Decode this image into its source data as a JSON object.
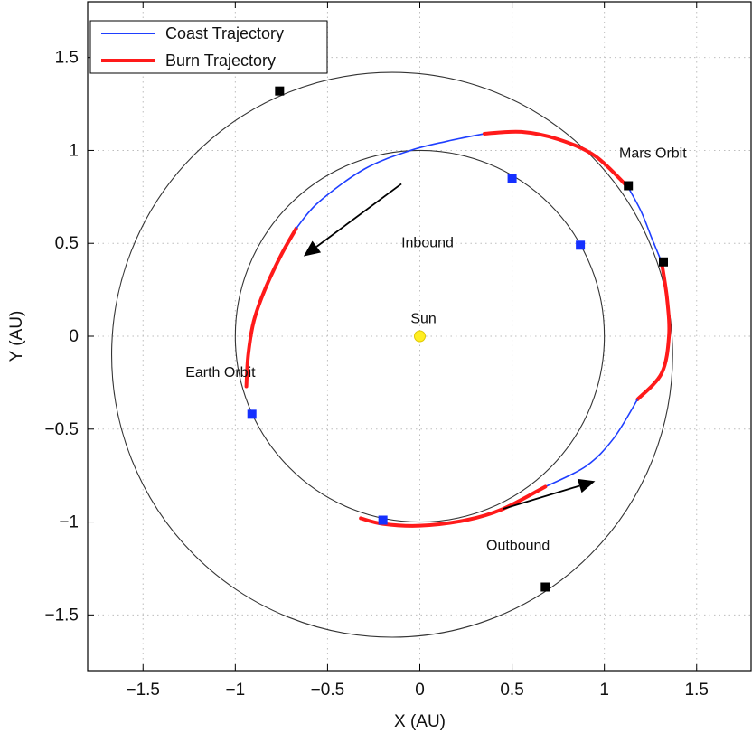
{
  "chart_data": {
    "type": "line",
    "title": "",
    "xlabel": "X (AU)",
    "ylabel": "Y (AU)",
    "xlim": [
      -1.8,
      1.8
    ],
    "ylim": [
      -1.8,
      1.8
    ],
    "grid": true,
    "legend_position": "top-left",
    "xticks": [
      -1.5,
      -1,
      -0.5,
      0,
      0.5,
      1,
      1.5
    ],
    "yticks": [
      -1.5,
      -1,
      -0.5,
      0,
      0.5,
      1,
      1.5
    ],
    "xtick_labels": [
      "−1.5",
      "−1",
      "−0.5",
      "0",
      "0.5",
      "1",
      "1.5"
    ],
    "ytick_labels": [
      "−1.5",
      "−1",
      "−0.5",
      "0",
      "0.5",
      "1",
      "1.5"
    ],
    "series": [
      {
        "name": "Coast Trajectory",
        "color": "#1f3fff"
      },
      {
        "name": "Burn Trajectory",
        "color": "#ff1a1a"
      }
    ],
    "legend_entries": [
      "Coast Trajectory",
      "Burn Trajectory"
    ],
    "orbits": [
      {
        "label": "Earth Orbit",
        "center": [
          0,
          0
        ],
        "radius": 1.0
      },
      {
        "label": "Mars Orbit",
        "center": [
          -0.15,
          -0.1
        ],
        "radius": 1.52
      }
    ],
    "trajectory_segments": [
      {
        "type": "burn",
        "points": [
          [
            -0.94,
            -0.27
          ],
          [
            -0.93,
            -0.1
          ],
          [
            -0.9,
            0.08
          ],
          [
            -0.84,
            0.25
          ],
          [
            -0.75,
            0.44
          ],
          [
            -0.67,
            0.58
          ]
        ]
      },
      {
        "type": "coast",
        "points": [
          [
            -0.67,
            0.58
          ],
          [
            -0.55,
            0.72
          ],
          [
            -0.3,
            0.9
          ],
          [
            -0.05,
            1.0
          ],
          [
            0.15,
            1.05
          ],
          [
            0.35,
            1.09
          ]
        ]
      },
      {
        "type": "burn",
        "points": [
          [
            0.35,
            1.09
          ],
          [
            0.55,
            1.1
          ],
          [
            0.75,
            1.06
          ],
          [
            0.95,
            0.97
          ],
          [
            1.13,
            0.8
          ]
        ]
      },
      {
        "type": "coast",
        "points": [
          [
            1.13,
            0.8
          ],
          [
            1.2,
            0.67
          ],
          [
            1.26,
            0.52
          ],
          [
            1.31,
            0.4
          ]
        ]
      },
      {
        "type": "burn",
        "points": [
          [
            1.31,
            0.4
          ],
          [
            1.34,
            0.2
          ],
          [
            1.35,
            0.0
          ],
          [
            1.31,
            -0.2
          ],
          [
            1.18,
            -0.34
          ]
        ]
      },
      {
        "type": "coast",
        "points": [
          [
            1.18,
            -0.34
          ],
          [
            1.05,
            -0.55
          ],
          [
            0.9,
            -0.7
          ],
          [
            0.68,
            -0.81
          ]
        ]
      },
      {
        "type": "burn",
        "points": [
          [
            0.68,
            -0.81
          ],
          [
            0.45,
            -0.93
          ],
          [
            0.25,
            -0.99
          ],
          [
            0.0,
            -1.02
          ],
          [
            -0.2,
            -1.01
          ],
          [
            -0.32,
            -0.98
          ]
        ]
      }
    ],
    "markers": {
      "black_squares": [
        [
          -0.76,
          1.32
        ],
        [
          1.13,
          0.81
        ],
        [
          1.32,
          0.4
        ],
        [
          0.68,
          -1.35
        ]
      ],
      "blue_squares": [
        [
          0.5,
          0.85
        ],
        [
          0.87,
          0.49
        ],
        [
          -0.91,
          -0.42
        ],
        [
          -0.2,
          -0.99
        ]
      ],
      "sun": [
        0.0,
        0.0
      ]
    },
    "arrows": [
      {
        "label": "Inbound",
        "from": [
          -0.1,
          0.82
        ],
        "to": [
          -0.63,
          0.43
        ]
      },
      {
        "label": "Outbound",
        "from": [
          0.45,
          -0.93
        ],
        "to": [
          0.95,
          -0.78
        ]
      }
    ],
    "annotations": [
      {
        "text": "Sun",
        "x": 0.02,
        "y": 0.07
      },
      {
        "text": "Inbound",
        "x": -0.1,
        "y": 0.48
      },
      {
        "text": "Outbound",
        "x": 0.36,
        "y": -1.15
      },
      {
        "text": "Earth Orbit",
        "x": -1.27,
        "y": -0.22
      },
      {
        "text": "Mars Orbit",
        "x": 1.08,
        "y": 0.96
      }
    ]
  }
}
